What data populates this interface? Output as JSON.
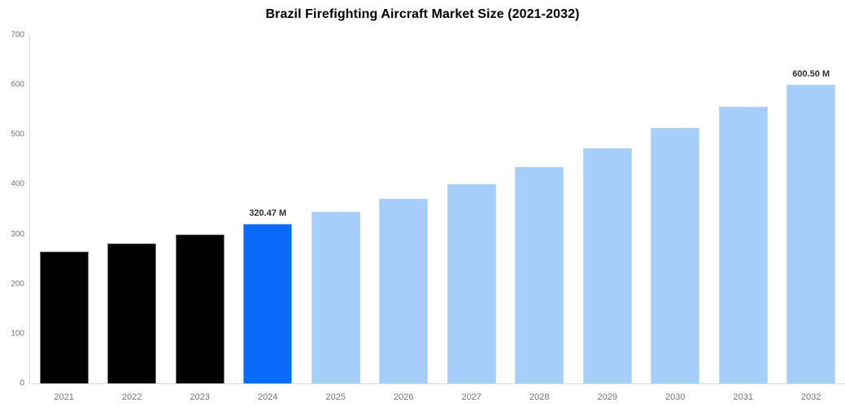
{
  "chart_data": {
    "type": "bar",
    "title": "Brazil Firefighting Aircraft Market Size (2021-2032)",
    "xlabel": "",
    "ylabel": "",
    "unit": "M",
    "categories": [
      "2021",
      "2022",
      "2023",
      "2024",
      "2025",
      "2026",
      "2027",
      "2028",
      "2029",
      "2030",
      "2031",
      "2032"
    ],
    "values": [
      265,
      281,
      300,
      320.47,
      345,
      371,
      400,
      435,
      473,
      514,
      556,
      600.5
    ],
    "bar_roles": [
      "historical",
      "historical",
      "historical",
      "highlight",
      "forecast",
      "forecast",
      "forecast",
      "forecast",
      "forecast",
      "forecast",
      "forecast",
      "forecast"
    ],
    "annotations": [
      {
        "index": 3,
        "text": "320.47 M"
      },
      {
        "index": 11,
        "text": "600.50 M"
      }
    ],
    "ylim": [
      0,
      700
    ],
    "yticks": [
      0,
      100,
      200,
      300,
      400,
      500,
      600,
      700
    ],
    "grid": false,
    "legend": "none",
    "colors": {
      "historical": "#000000",
      "highlight": "#0a6bfa",
      "forecast": "#a6cefa",
      "axis_line": "#d9d9d9",
      "tick_text": "#757575",
      "title_text": "#000000",
      "annotation_text": "#2e2e2e",
      "background": "#ffffff"
    }
  }
}
